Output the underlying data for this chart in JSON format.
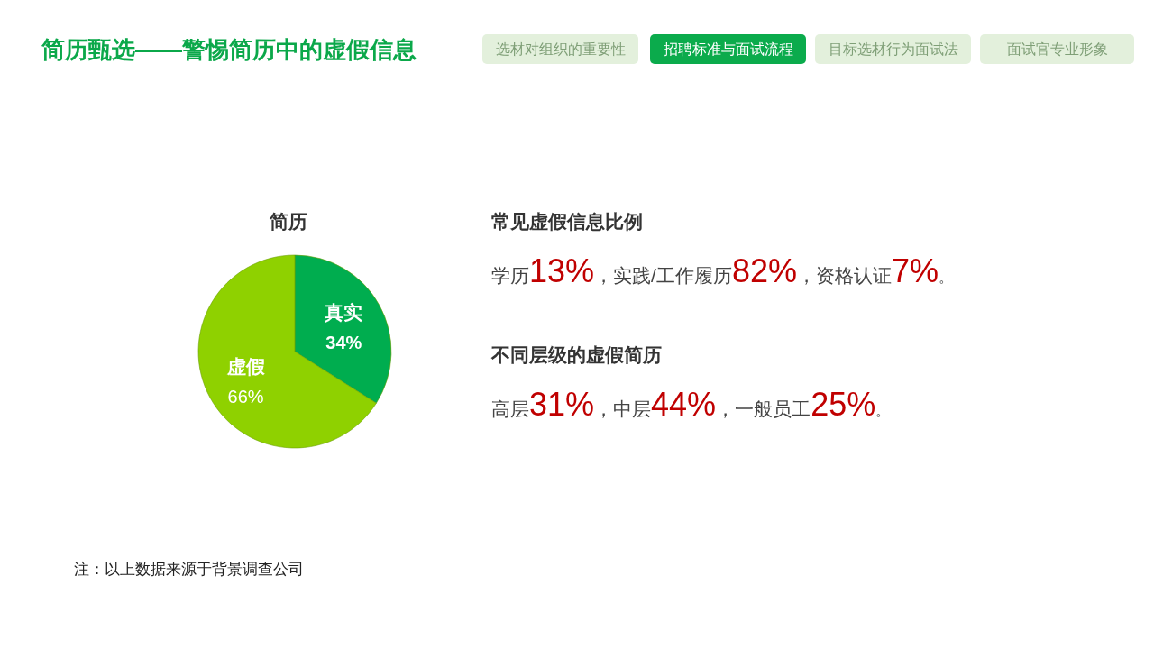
{
  "chart_data": [
    {
      "type": "other",
      "title": "简历甄选——警惕简历中的虚假信息",
      "annotations": [
        "选材对组织的重要性",
        "招聘标准与面试流程",
        "目标选材行为面试法",
        "面试官专业形象",
        "注：以上数据来源于背景调查公司"
      ]
    },
    {
      "type": "pie",
      "title": "简历",
      "categories": [
        "真实",
        "虚假"
      ],
      "values": [
        34,
        66
      ],
      "colors": [
        "#00ad4f",
        "#8fd100"
      ],
      "value_labels": [
        "34%",
        "66%"
      ]
    },
    {
      "type": "other",
      "title": "常见虚假信息比例",
      "categories": [
        "学历",
        "，实践/工作履历",
        "，资格认证"
      ],
      "value_labels": [
        "13%",
        "82%",
        "7%"
      ],
      "annotations": [
        "。"
      ]
    },
    {
      "type": "other",
      "title": "不同层级的虚假简历",
      "categories": [
        "高层",
        "，中层",
        "，一般员工"
      ],
      "value_labels": [
        "31%",
        "44%",
        "25%"
      ],
      "annotations": [
        "。"
      ]
    }
  ]
}
